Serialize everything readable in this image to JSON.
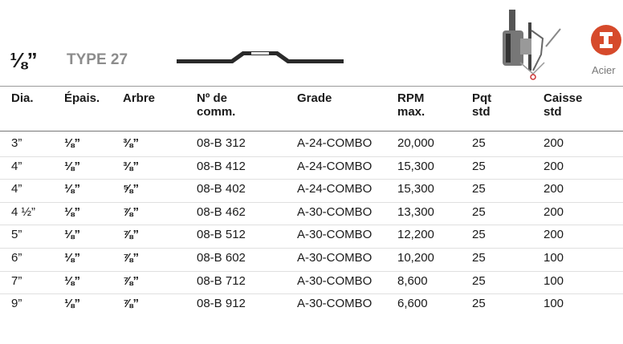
{
  "header": {
    "size": "⅛”",
    "type": "TYPE 27",
    "material": "Acier"
  },
  "table": {
    "columns": [
      "Dia.",
      "Épais.",
      "Arbre",
      "Nº de comm.",
      "Grade",
      "RPM max.",
      "Pqt std",
      "Caisse std"
    ],
    "rows": [
      [
        "3”",
        "⅛”",
        "⅜”",
        "08-B 312",
        "A-24-COMBO",
        "20,000",
        "25",
        "200"
      ],
      [
        "4”",
        "⅛”",
        "⅜”",
        "08-B 412",
        "A-24-COMBO",
        "15,300",
        "25",
        "200"
      ],
      [
        "4”",
        "⅛”",
        "⅝”",
        "08-B 402",
        "A-24-COMBO",
        "15,300",
        "25",
        "200"
      ],
      [
        "4 ½”",
        "⅛”",
        "⅞”",
        "08-B 462",
        "A-30-COMBO",
        "13,300",
        "25",
        "200"
      ],
      [
        "5”",
        "⅛”",
        "⅞”",
        "08-B 512",
        "A-30-COMBO",
        "12,200",
        "25",
        "200"
      ],
      [
        "6”",
        "⅛”",
        "⅞”",
        "08-B 602",
        "A-30-COMBO",
        "10,200",
        "25",
        "100"
      ],
      [
        "7”",
        "⅛”",
        "⅞”",
        "08-B 712",
        "A-30-COMBO",
        "8,600",
        "25",
        "100"
      ],
      [
        "9”",
        "⅛”",
        "⅞”",
        "08-B 912",
        "A-30-COMBO",
        "6,600",
        "25",
        "100"
      ]
    ]
  }
}
